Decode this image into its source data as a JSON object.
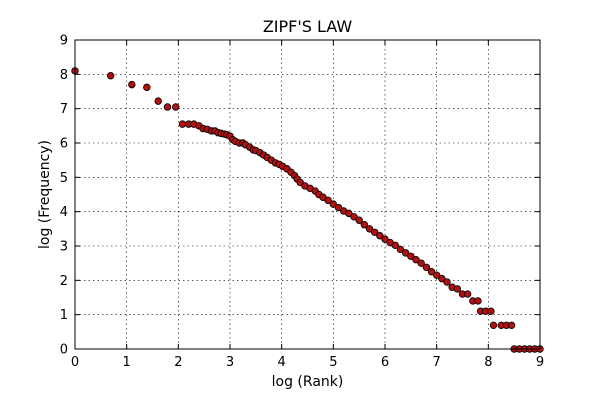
{
  "chart_data": {
    "type": "scatter",
    "title": "ZIPF'S LAW",
    "xlabel": "log (Rank)",
    "ylabel": "log (Frequency)",
    "xlim": [
      0,
      9
    ],
    "ylim": [
      0,
      9
    ],
    "xticks": [
      "0",
      "1",
      "2",
      "3",
      "4",
      "5",
      "6",
      "7",
      "8",
      "9"
    ],
    "yticks": [
      "0",
      "1",
      "2",
      "3",
      "4",
      "5",
      "6",
      "7",
      "8",
      "9"
    ],
    "grid": true,
    "marker_color": "#b01010",
    "marker_edge_color": "#000000",
    "series": [
      {
        "points": [
          [
            0.0,
            8.1
          ],
          [
            0.69,
            7.96
          ],
          [
            1.1,
            7.7
          ],
          [
            1.39,
            7.62
          ],
          [
            1.61,
            7.22
          ],
          [
            1.79,
            7.05
          ],
          [
            1.95,
            7.05
          ],
          [
            2.08,
            6.55
          ],
          [
            2.2,
            6.55
          ],
          [
            2.3,
            6.55
          ],
          [
            2.4,
            6.5
          ],
          [
            2.48,
            6.42
          ],
          [
            2.56,
            6.4
          ],
          [
            2.64,
            6.35
          ],
          [
            2.71,
            6.35
          ],
          [
            2.77,
            6.3
          ],
          [
            2.83,
            6.28
          ],
          [
            2.89,
            6.26
          ],
          [
            2.94,
            6.24
          ],
          [
            3.0,
            6.2
          ],
          [
            3.05,
            6.1
          ],
          [
            3.1,
            6.05
          ],
          [
            3.18,
            6.0
          ],
          [
            3.25,
            6.0
          ],
          [
            3.3,
            5.95
          ],
          [
            3.38,
            5.88
          ],
          [
            3.45,
            5.8
          ],
          [
            3.5,
            5.78
          ],
          [
            3.58,
            5.72
          ],
          [
            3.65,
            5.65
          ],
          [
            3.72,
            5.58
          ],
          [
            3.8,
            5.5
          ],
          [
            3.88,
            5.42
          ],
          [
            3.95,
            5.38
          ],
          [
            4.02,
            5.32
          ],
          [
            4.1,
            5.25
          ],
          [
            4.18,
            5.15
          ],
          [
            4.25,
            5.05
          ],
          [
            4.3,
            4.95
          ],
          [
            4.36,
            4.85
          ],
          [
            4.45,
            4.75
          ],
          [
            4.55,
            4.68
          ],
          [
            4.65,
            4.6
          ],
          [
            4.72,
            4.5
          ],
          [
            4.8,
            4.42
          ],
          [
            4.9,
            4.33
          ],
          [
            5.0,
            4.22
          ],
          [
            5.1,
            4.12
          ],
          [
            5.2,
            4.02
          ],
          [
            5.3,
            3.95
          ],
          [
            5.4,
            3.85
          ],
          [
            5.5,
            3.75
          ],
          [
            5.6,
            3.62
          ],
          [
            5.7,
            3.5
          ],
          [
            5.8,
            3.4
          ],
          [
            5.9,
            3.3
          ],
          [
            6.0,
            3.2
          ],
          [
            6.1,
            3.1
          ],
          [
            6.2,
            3.02
          ],
          [
            6.3,
            2.9
          ],
          [
            6.4,
            2.8
          ],
          [
            6.5,
            2.7
          ],
          [
            6.6,
            2.6
          ],
          [
            6.7,
            2.5
          ],
          [
            6.8,
            2.38
          ],
          [
            6.9,
            2.25
          ],
          [
            7.0,
            2.15
          ],
          [
            7.1,
            2.05
          ],
          [
            7.2,
            1.95
          ],
          [
            7.3,
            1.8
          ],
          [
            7.4,
            1.75
          ],
          [
            7.5,
            1.6
          ],
          [
            7.6,
            1.6
          ],
          [
            7.7,
            1.4
          ],
          [
            7.8,
            1.4
          ],
          [
            7.85,
            1.1
          ],
          [
            7.95,
            1.1
          ],
          [
            8.05,
            1.1
          ],
          [
            8.1,
            0.69
          ],
          [
            8.25,
            0.69
          ],
          [
            8.35,
            0.69
          ],
          [
            8.45,
            0.69
          ],
          [
            8.5,
            0.0
          ],
          [
            8.6,
            0.0
          ],
          [
            8.7,
            0.0
          ],
          [
            8.8,
            0.0
          ],
          [
            8.9,
            0.0
          ],
          [
            9.0,
            0.0
          ]
        ]
      }
    ]
  }
}
